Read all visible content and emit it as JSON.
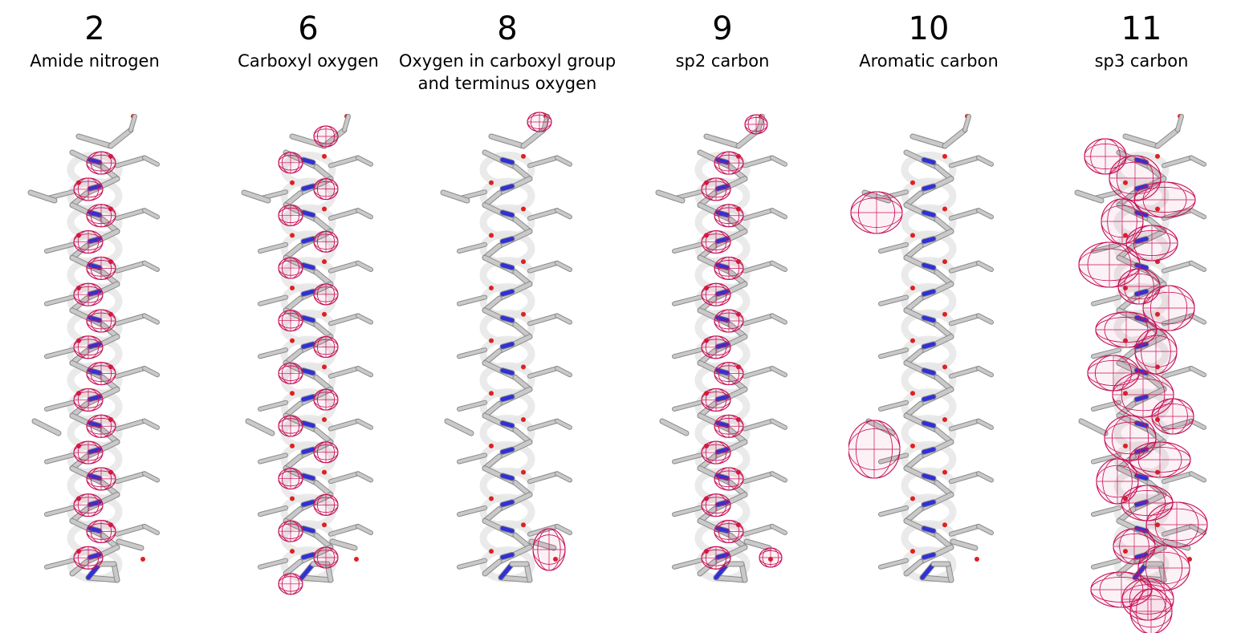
{
  "panels": [
    {
      "number": "2",
      "label": "Amide nitrogen",
      "density": "backbone-N"
    },
    {
      "number": "6",
      "label": "Carboxyl oxygen",
      "density": "carbonyl-O"
    },
    {
      "number": "8",
      "label": "Oxygen in carboxyl group\nand terminus oxygen",
      "density": "terminus-O"
    },
    {
      "number": "9",
      "label": "sp2 carbon",
      "density": "sp2-C"
    },
    {
      "number": "10",
      "label": "Aromatic carbon",
      "density": "aromatic-C"
    },
    {
      "number": "11",
      "label": "sp3 carbon",
      "density": "sp3-C"
    }
  ],
  "colors": {
    "mesh": "#c8145a",
    "carbon": "#c9c9c9",
    "nitrogen": "#3030d8",
    "oxygen": "#e02020",
    "ribbon": "#e6e6e6"
  }
}
